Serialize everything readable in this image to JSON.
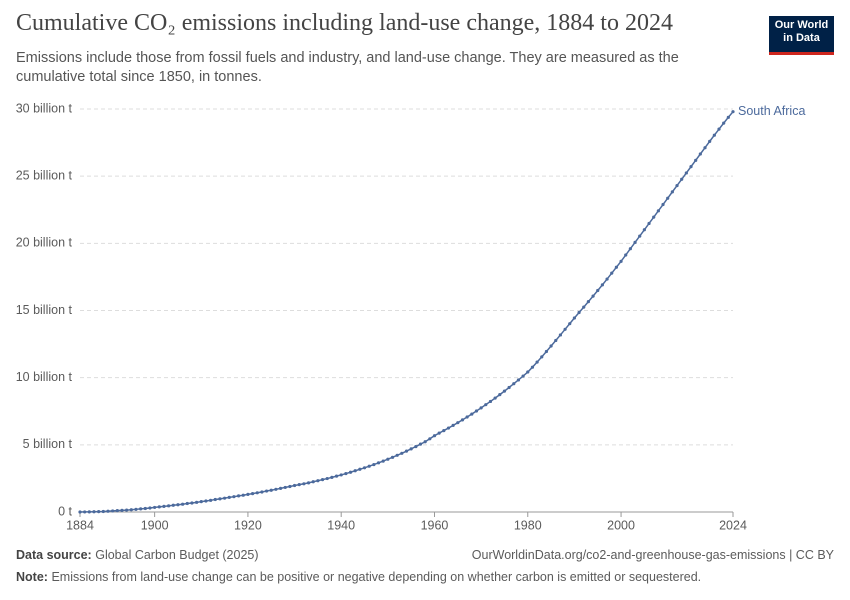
{
  "chart_data": {
    "type": "line",
    "title": "Cumulative CO₂ emissions including land-use change, 1884 to 2024",
    "subtitle": "Emissions include those from fossil fuels and industry, and land-use change. They are measured as the cumulative total since 1850, in tonnes.",
    "logo": "Our World in Data",
    "source_label": "Data source:",
    "source": "Global Carbon Budget (2025)",
    "url": "OurWorldinData.org/co2-and-greenhouse-gas-emissions | CC BY",
    "note_label": "Note:",
    "note": "Emissions from land-use change can be positive or negative depending on whether carbon is emitted or sequestered.",
    "grid": true,
    "xlim": [
      1884,
      2024
    ],
    "xticks": [
      1884,
      1900,
      1920,
      1940,
      1960,
      1980,
      2000,
      2024
    ],
    "ylim": [
      0,
      30000000000
    ],
    "yticks": [
      {
        "value": 0,
        "label": "0 t"
      },
      {
        "value": 5000000000,
        "label": "5 billion t"
      },
      {
        "value": 10000000000,
        "label": "10 billion t"
      },
      {
        "value": 15000000000,
        "label": "15 billion t"
      },
      {
        "value": 20000000000,
        "label": "20 billion t"
      },
      {
        "value": 25000000000,
        "label": "25 billion t"
      },
      {
        "value": 30000000000,
        "label": "30 billion t"
      }
    ],
    "x": [
      1884,
      1885,
      1886,
      1887,
      1888,
      1889,
      1890,
      1891,
      1892,
      1893,
      1894,
      1895,
      1896,
      1897,
      1898,
      1899,
      1900,
      1901,
      1902,
      1903,
      1904,
      1905,
      1906,
      1907,
      1908,
      1909,
      1910,
      1911,
      1912,
      1913,
      1914,
      1915,
      1916,
      1917,
      1918,
      1919,
      1920,
      1921,
      1922,
      1923,
      1924,
      1925,
      1926,
      1927,
      1928,
      1929,
      1930,
      1931,
      1932,
      1933,
      1934,
      1935,
      1936,
      1937,
      1938,
      1939,
      1940,
      1941,
      1942,
      1943,
      1944,
      1945,
      1946,
      1947,
      1948,
      1949,
      1950,
      1951,
      1952,
      1953,
      1954,
      1955,
      1956,
      1957,
      1958,
      1959,
      1960,
      1961,
      1962,
      1963,
      1964,
      1965,
      1966,
      1967,
      1968,
      1969,
      1970,
      1971,
      1972,
      1973,
      1974,
      1975,
      1976,
      1977,
      1978,
      1979,
      1980,
      1981,
      1982,
      1983,
      1984,
      1985,
      1986,
      1987,
      1988,
      1989,
      1990,
      1991,
      1992,
      1993,
      1994,
      1995,
      1996,
      1997,
      1998,
      1999,
      2000,
      2001,
      2002,
      2003,
      2004,
      2005,
      2006,
      2007,
      2008,
      2009,
      2010,
      2011,
      2012,
      2013,
      2014,
      2015,
      2016,
      2017,
      2018,
      2019,
      2020,
      2021,
      2022,
      2023,
      2024
    ],
    "series": [
      {
        "name": "South Africa",
        "color": "#4c6a9c",
        "values": [
          0,
          5000000,
          10000000,
          20000000,
          30000000,
          40000000,
          60000000,
          80000000,
          100000000,
          120000000,
          140000000,
          170000000,
          200000000,
          230000000,
          260000000,
          300000000,
          340000000,
          380000000,
          420000000,
          460000000,
          500000000,
          540000000,
          580000000,
          630000000,
          670000000,
          720000000,
          770000000,
          820000000,
          870000000,
          930000000,
          980000000,
          1030000000,
          1090000000,
          1140000000,
          1200000000,
          1250000000,
          1310000000,
          1370000000,
          1430000000,
          1490000000,
          1560000000,
          1620000000,
          1690000000,
          1760000000,
          1830000000,
          1900000000,
          1970000000,
          2040000000,
          2100000000,
          2170000000,
          2250000000,
          2330000000,
          2410000000,
          2490000000,
          2580000000,
          2670000000,
          2760000000,
          2860000000,
          2960000000,
          3070000000,
          3180000000,
          3290000000,
          3410000000,
          3530000000,
          3660000000,
          3790000000,
          3930000000,
          4070000000,
          4220000000,
          4370000000,
          4530000000,
          4700000000,
          4870000000,
          5050000000,
          5230000000,
          5450000000,
          5680000000,
          5870000000,
          6060000000,
          6250000000,
          6450000000,
          6650000000,
          6860000000,
          7070000000,
          7290000000,
          7520000000,
          7750000000,
          7990000000,
          8230000000,
          8480000000,
          8740000000,
          9000000000,
          9270000000,
          9550000000,
          9830000000,
          10120000000,
          10420000000,
          10780000000,
          11160000000,
          11550000000,
          11950000000,
          12360000000,
          12770000000,
          13180000000,
          13600000000,
          14020000000,
          14440000000,
          14850000000,
          15250000000,
          15660000000,
          16070000000,
          16490000000,
          16910000000,
          17340000000,
          17780000000,
          18220000000,
          18660000000,
          19130000000,
          19600000000,
          20070000000,
          20540000000,
          21010000000,
          21480000000,
          21950000000,
          22420000000,
          22890000000,
          23360000000,
          23830000000,
          24300000000,
          24770000000,
          25240000000,
          25710000000,
          26180000000,
          26650000000,
          27120000000,
          27590000000,
          28050000000,
          28500000000,
          28950000000,
          29380000000,
          29800000000
        ]
      }
    ]
  }
}
